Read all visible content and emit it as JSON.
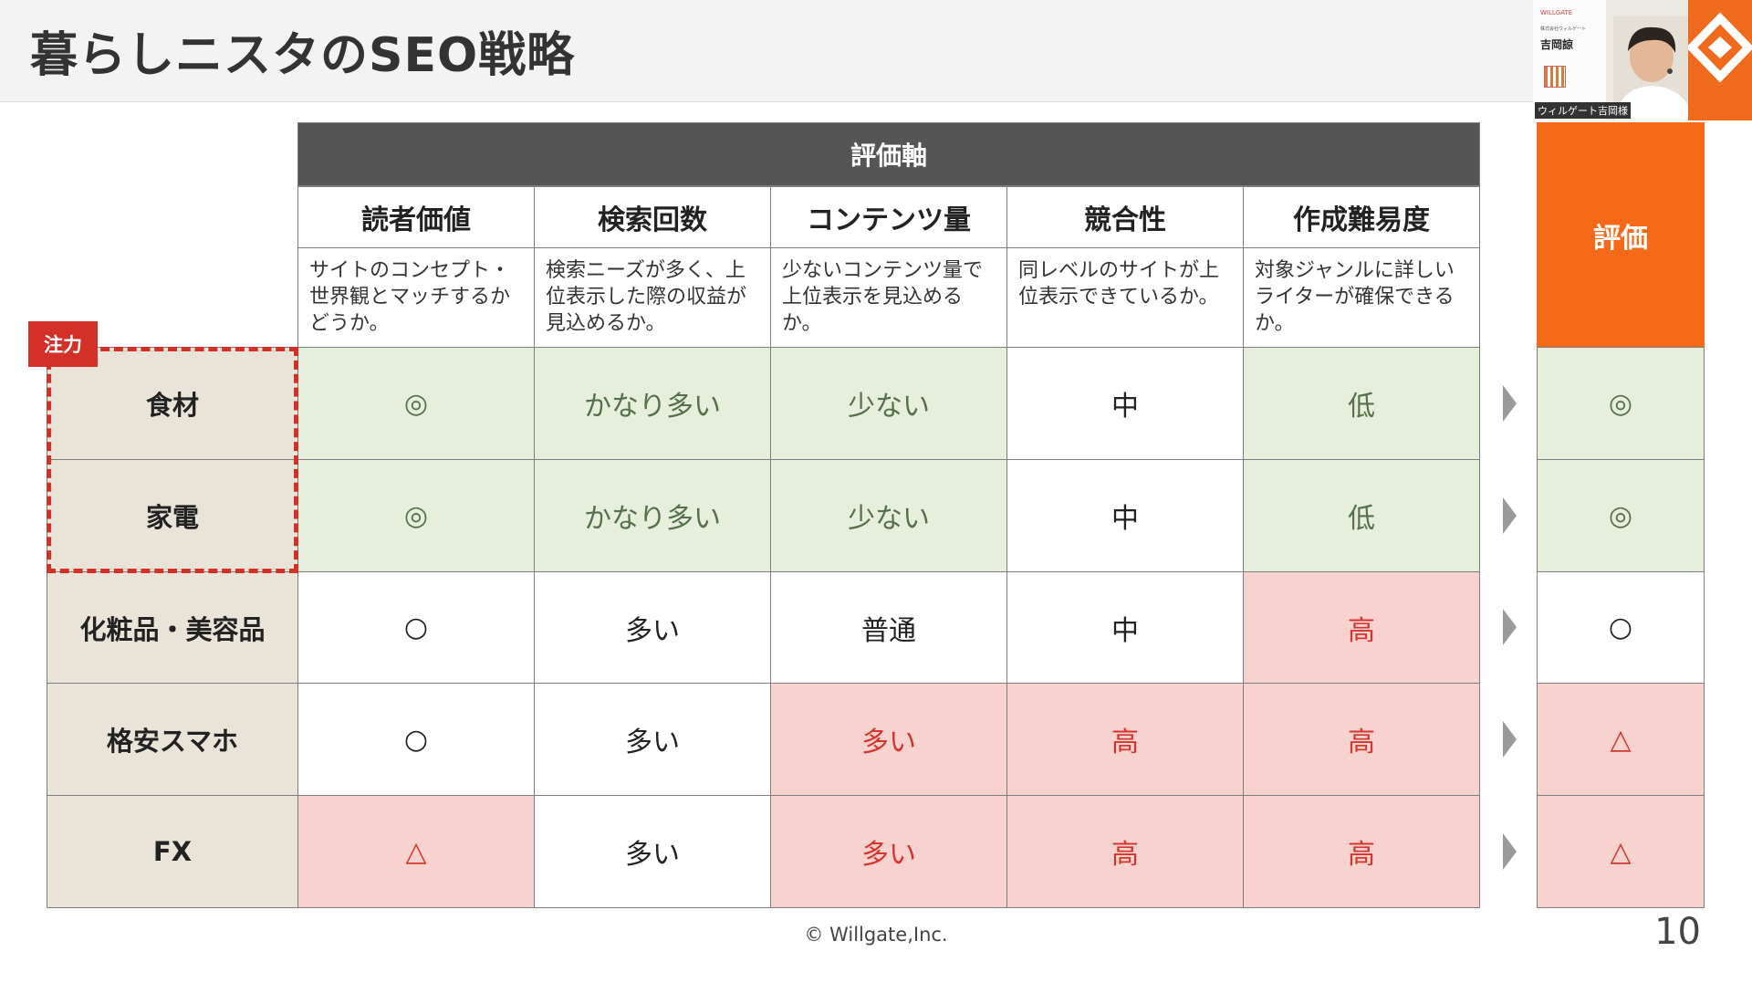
{
  "title": "暮らしニスタのSEO戦略",
  "webcam": {
    "company": "WILLGATE",
    "subtitle": "株式会社ウィルゲート",
    "presenter": "吉岡諒",
    "label": "ウィルゲート吉岡様"
  },
  "table": {
    "group_header": "評価軸",
    "columns": [
      {
        "name": "読者価値",
        "desc": "サイトのコンセプト・世界観とマッチするかどうか。"
      },
      {
        "name": "検索回数",
        "desc": "検索ニーズが多く、上位表示した際の収益が見込めるか。"
      },
      {
        "name": "コンテンツ量",
        "desc": "少ないコンテンツ量で上位表示を見込めるか。"
      },
      {
        "name": "競合性",
        "desc": "同レベルのサイトが上位表示できているか。"
      },
      {
        "name": "作成難易度",
        "desc": "対象ジャンルに詳しいライターが確保できるか。"
      }
    ],
    "eval_header": "評価",
    "focus_label": "注力",
    "rows": [
      {
        "label": "食材",
        "values": [
          "◎",
          "かなり多い",
          "少ない",
          "中",
          "低"
        ],
        "eval": "◎"
      },
      {
        "label": "家電",
        "values": [
          "◎",
          "かなり多い",
          "少ない",
          "中",
          "低"
        ],
        "eval": "◎"
      },
      {
        "label": "化粧品・美容品",
        "values": [
          "○",
          "多い",
          "普通",
          "中",
          "高"
        ],
        "eval": "○"
      },
      {
        "label": "格安スマホ",
        "values": [
          "○",
          "多い",
          "多い",
          "高",
          "高"
        ],
        "eval": "△"
      },
      {
        "label": "FX",
        "values": [
          "△",
          "多い",
          "多い",
          "高",
          "高"
        ],
        "eval": "△"
      }
    ]
  },
  "colors": {
    "good": "#e5efdc",
    "bad": "#f8d2cf",
    "accent": "#f56a18",
    "focus": "#d33127"
  },
  "footer": "© Willgate,Inc.",
  "page_number": "10"
}
